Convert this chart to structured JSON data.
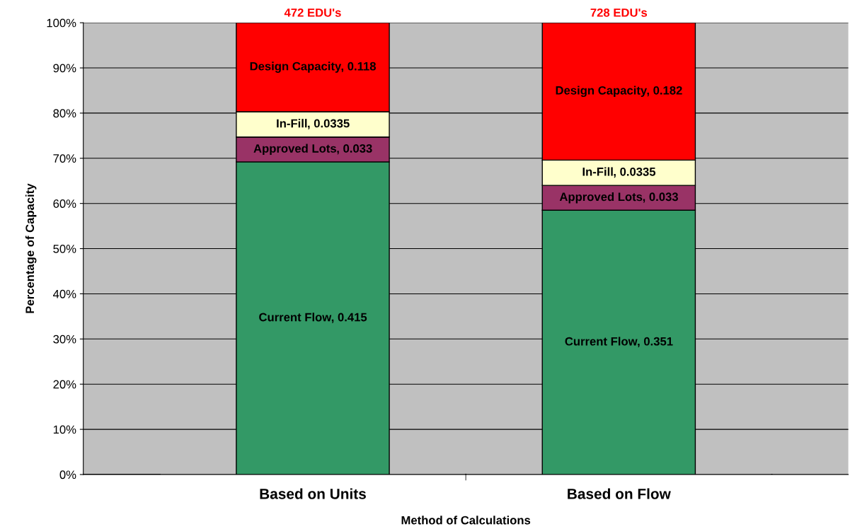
{
  "chart_data": {
    "type": "bar",
    "stacked": true,
    "xlabel": "Method of Calculations",
    "ylabel": "Percentage of Capacity",
    "categories": [
      "Based on Units",
      "Based on Flow"
    ],
    "series": [
      {
        "name": "Current Flow",
        "color": "#339966",
        "values": [
          69.2,
          58.5
        ]
      },
      {
        "name": "Approved Lots",
        "color": "#993366",
        "values": [
          5.5,
          5.5
        ]
      },
      {
        "name": "In-Fill",
        "color": "#ffffcc",
        "values": [
          5.6,
          5.6
        ]
      },
      {
        "name": "Design Capacity",
        "color": "#ff0000",
        "values": [
          19.7,
          30.4
        ]
      }
    ],
    "annotations": [
      "472 EDU's",
      "728 EDU's",
      ", 0.415",
      ", 0.351",
      ", 0.033",
      ", 0.033",
      ", 0.0335",
      ", 0.0335",
      ", 0.118",
      ", 0.182"
    ],
    "ylim": [
      0,
      100
    ],
    "yticks": [
      {
        "value": 0,
        "label": "0%"
      },
      {
        "value": 10,
        "label": "10%"
      },
      {
        "value": 20,
        "label": "20%"
      },
      {
        "value": 30,
        "label": "30%"
      },
      {
        "value": 40,
        "label": "40%"
      },
      {
        "value": 50,
        "label": "50%"
      },
      {
        "value": 60,
        "label": "60%"
      },
      {
        "value": 70,
        "label": "70%"
      },
      {
        "value": 80,
        "label": "80%"
      },
      {
        "value": 90,
        "label": "90%"
      },
      {
        "value": 100,
        "label": "100%"
      }
    ],
    "grid": "y",
    "legend": false
  }
}
